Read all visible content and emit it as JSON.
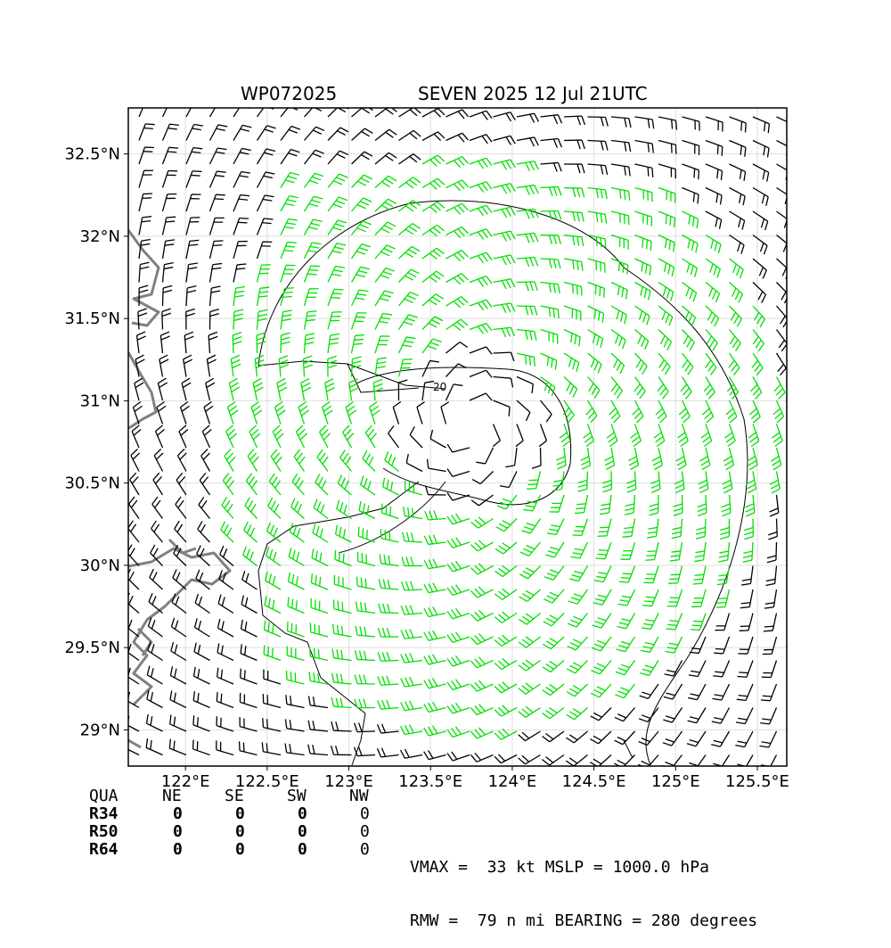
{
  "title": {
    "storm_id": "WP072025",
    "storm_info": "SEVEN 2025 12 Jul 21UTC"
  },
  "axes": {
    "x_ticks": [
      "122°E",
      "122.5°E",
      "123°E",
      "123.5°E",
      "124°E",
      "124.5°E",
      "125°E",
      "125.5°E"
    ],
    "y_ticks": [
      "32.5°N",
      "32°N",
      "31.5°N",
      "31°N",
      "30.5°N",
      "30°N",
      "29.5°N",
      "29°N"
    ]
  },
  "map_data": {
    "lon_range": [
      121.65,
      125.68
    ],
    "lat_range": [
      28.78,
      32.78
    ],
    "storm_center": {
      "lon": 123.75,
      "lat": 30.85
    },
    "rmw_nmi": 79,
    "contour_label": "20",
    "colors": {
      "strong_wind": "#00e000",
      "light_wind": "#000000",
      "coastline": "#808080",
      "contour": "#000000",
      "grid": "#dddddd"
    }
  },
  "wind_radii": {
    "header": [
      "QUA",
      "NE",
      "SE",
      "SW",
      "NW"
    ],
    "rows": [
      {
        "label": "R34",
        "values": [
          "0",
          "0",
          "0",
          "0"
        ]
      },
      {
        "label": "R50",
        "values": [
          "0",
          "0",
          "0",
          "0"
        ]
      },
      {
        "label": "R64",
        "values": [
          "0",
          "0",
          "0",
          "0"
        ]
      }
    ]
  },
  "summary": {
    "line1": "VMAX =  33 kt MSLP = 1000.0 hPa",
    "line2": "RMW =  79 n mi BEARING = 280 degrees"
  }
}
